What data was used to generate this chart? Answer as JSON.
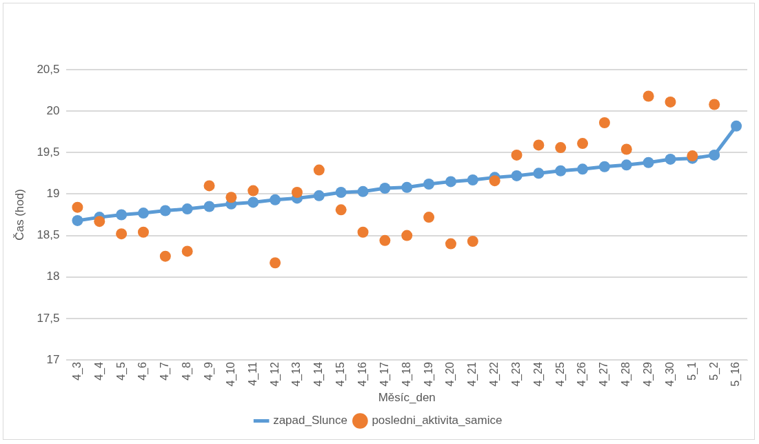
{
  "chart_data": {
    "type": "line",
    "xlabel": "Měsíc_den",
    "ylabel": "Čas (hod)",
    "categories": [
      "4_3",
      "4_4",
      "4_5",
      "4_6",
      "4_7",
      "4_8",
      "4_9",
      "4_10",
      "4_11",
      "4_12",
      "4_13",
      "4_14",
      "4_15",
      "4_16",
      "4_17",
      "4_18",
      "4_19",
      "4_20",
      "4_21",
      "4_22",
      "4_23",
      "4_24",
      "4_25",
      "4_26",
      "4_27",
      "4_28",
      "4_29",
      "4_30",
      "5_1",
      "5_2",
      "5_16"
    ],
    "series": [
      {
        "name": "zapad_Slunce",
        "type": "line",
        "color": "#5b9bd5",
        "marker": "circle",
        "values": [
          18.68,
          18.72,
          18.75,
          18.77,
          18.8,
          18.82,
          18.85,
          18.88,
          18.9,
          18.93,
          18.95,
          18.98,
          19.02,
          19.03,
          19.07,
          19.08,
          19.12,
          19.15,
          19.17,
          19.2,
          19.22,
          19.25,
          19.28,
          19.3,
          19.33,
          19.35,
          19.38,
          19.42,
          19.43,
          19.47,
          19.82
        ]
      },
      {
        "name": "posledni_aktivita_samice",
        "type": "scatter",
        "color": "#ed7d31",
        "marker": "circle",
        "values": [
          18.84,
          18.67,
          18.52,
          18.54,
          18.25,
          18.31,
          19.1,
          18.96,
          19.04,
          18.17,
          19.02,
          19.29,
          18.81,
          18.54,
          18.44,
          18.5,
          18.72,
          18.4,
          18.43,
          19.16,
          19.47,
          19.59,
          19.56,
          19.61,
          19.86,
          19.54,
          20.18,
          20.11,
          19.46,
          20.08,
          null
        ]
      }
    ],
    "ylim": [
      17,
      20.5
    ],
    "yticks": [
      {
        "value": 17,
        "label": "17"
      },
      {
        "value": 17.5,
        "label": "17,5"
      },
      {
        "value": 18,
        "label": "18"
      },
      {
        "value": 18.5,
        "label": "18,5"
      },
      {
        "value": 19,
        "label": "19"
      },
      {
        "value": 19.5,
        "label": "19,5"
      },
      {
        "value": 20,
        "label": "20"
      },
      {
        "value": 20.5,
        "label": "20,5"
      }
    ],
    "grid": "y",
    "legend": "bottom"
  }
}
